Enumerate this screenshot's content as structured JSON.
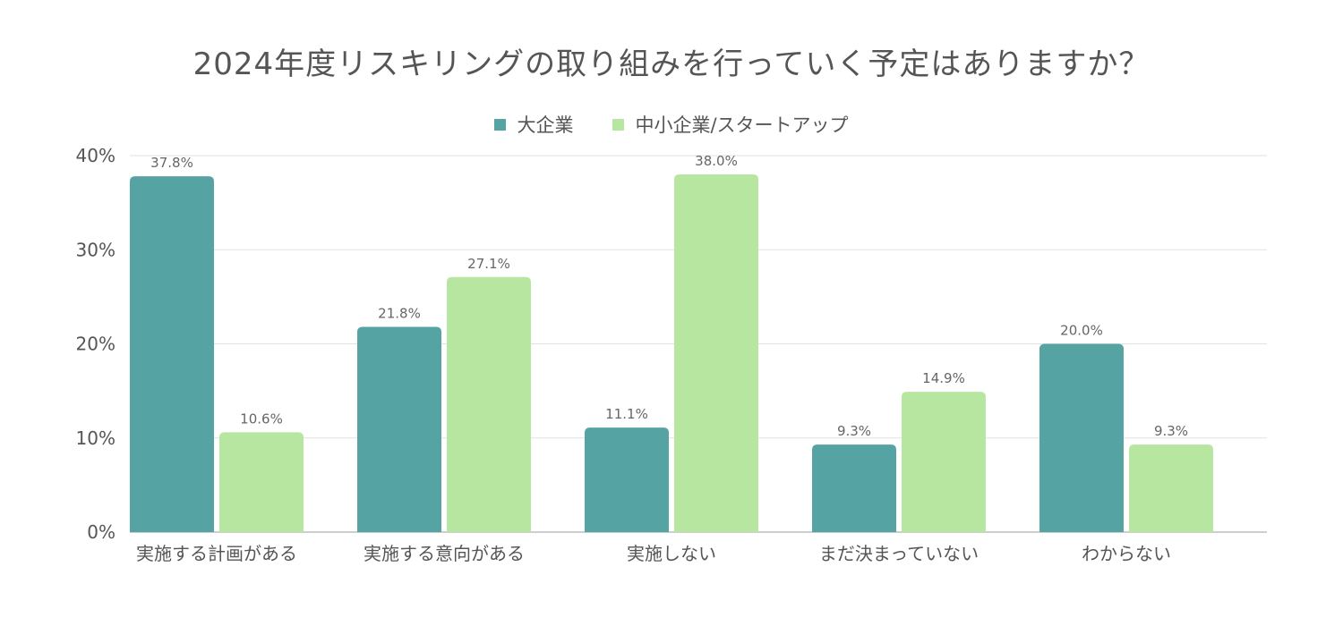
{
  "chart_data": {
    "type": "bar",
    "title": "2024年度リスキリングの取り組みを行っていく予定はありますか？",
    "categories": [
      "実施する計画がある",
      "実施する意向がある",
      "実施しない",
      "まだ決まっていない",
      "わからない"
    ],
    "series": [
      {
        "name": "大企業",
        "color": "#56a3a4",
        "values": [
          37.8,
          21.8,
          11.1,
          9.3,
          20.0
        ],
        "labels": [
          "37.8%",
          "21.8%",
          "11.1%",
          "9.3%",
          "20.0%"
        ]
      },
      {
        "name": "中小企業/スタートアップ",
        "color": "#b7e6a0",
        "values": [
          10.6,
          27.1,
          38.0,
          14.9,
          9.3
        ],
        "labels": [
          "10.6%",
          "27.1%",
          "38.0%",
          "14.9%",
          "9.3%"
        ]
      }
    ],
    "ylim": [
      0,
      40
    ],
    "yticks": [
      0,
      10,
      20,
      30,
      40
    ],
    "ytick_labels": [
      "0%",
      "10%",
      "20%",
      "30%",
      "40%"
    ],
    "xlabel": "",
    "ylabel": "",
    "grid": true,
    "legend_position": "top-center"
  }
}
